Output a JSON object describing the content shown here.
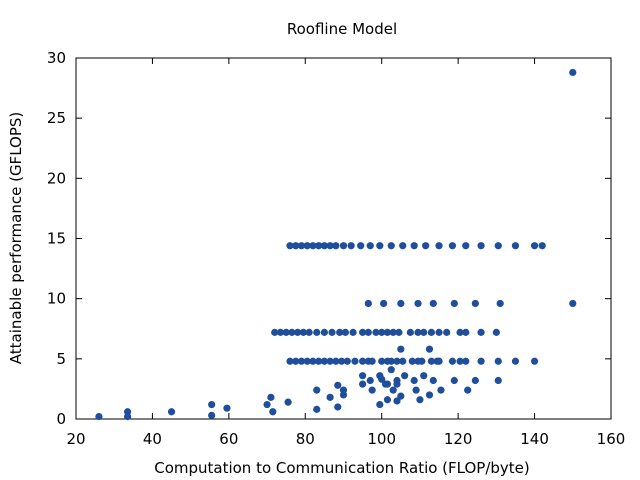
{
  "chart_data": {
    "type": "scatter",
    "title": "Roofline Model",
    "xlabel": "Computation to Communication Ratio (FLOP/byte)",
    "ylabel": "Attainable performance (GFLOPS)",
    "xlim": [
      20,
      160
    ],
    "ylim": [
      0,
      30
    ],
    "xticks": [
      20,
      40,
      60,
      80,
      100,
      120,
      140,
      160
    ],
    "yticks": [
      0,
      5,
      10,
      15,
      20,
      25,
      30
    ],
    "grid": false,
    "marker_color": "#1f4e9c",
    "points": [
      [
        26,
        0.2
      ],
      [
        33.5,
        0.6
      ],
      [
        33.5,
        0.2
      ],
      [
        45,
        0.6
      ],
      [
        55.5,
        1.2
      ],
      [
        55.5,
        0.3
      ],
      [
        59.5,
        0.9
      ],
      [
        70,
        1.2
      ],
      [
        71,
        1.8
      ],
      [
        71.5,
        0.6
      ],
      [
        75.5,
        1.4
      ],
      [
        76,
        14.4
      ],
      [
        77.5,
        14.4
      ],
      [
        79,
        14.4
      ],
      [
        80.5,
        14.4
      ],
      [
        82,
        14.4
      ],
      [
        83.5,
        14.4
      ],
      [
        85,
        14.4
      ],
      [
        86.5,
        14.4
      ],
      [
        88,
        14.4
      ],
      [
        90,
        14.4
      ],
      [
        92,
        14.4
      ],
      [
        94.5,
        14.4
      ],
      [
        97,
        14.4
      ],
      [
        99.5,
        14.4
      ],
      [
        102.5,
        14.4
      ],
      [
        105.5,
        14.4
      ],
      [
        108.5,
        14.4
      ],
      [
        111.5,
        14.4
      ],
      [
        115,
        14.4
      ],
      [
        118.5,
        14.4
      ],
      [
        122,
        14.4
      ],
      [
        126,
        14.4
      ],
      [
        130.5,
        14.4
      ],
      [
        135,
        14.4
      ],
      [
        140,
        14.4
      ],
      [
        142,
        14.4
      ],
      [
        150,
        28.8
      ],
      [
        96.5,
        9.6
      ],
      [
        100.5,
        9.6
      ],
      [
        105,
        9.6
      ],
      [
        109.5,
        9.6
      ],
      [
        113.5,
        9.6
      ],
      [
        119,
        9.6
      ],
      [
        124.5,
        9.6
      ],
      [
        131,
        9.6
      ],
      [
        150,
        9.6
      ],
      [
        72,
        7.2
      ],
      [
        73.5,
        7.2
      ],
      [
        75,
        7.2
      ],
      [
        76.5,
        7.2
      ],
      [
        78,
        7.2
      ],
      [
        79.5,
        7.2
      ],
      [
        81,
        7.2
      ],
      [
        83,
        7.2
      ],
      [
        85,
        7.2
      ],
      [
        87,
        7.2
      ],
      [
        89,
        7.2
      ],
      [
        90.5,
        7.2
      ],
      [
        92.5,
        7.2
      ],
      [
        95,
        7.2
      ],
      [
        96.5,
        7.2
      ],
      [
        98.5,
        7.2
      ],
      [
        100,
        7.2
      ],
      [
        101.5,
        7.2
      ],
      [
        103,
        7.2
      ],
      [
        104.5,
        7.2
      ],
      [
        107.5,
        7.2
      ],
      [
        109.5,
        7.2
      ],
      [
        111,
        7.2
      ],
      [
        113,
        7.2
      ],
      [
        115,
        7.2
      ],
      [
        117,
        7.2
      ],
      [
        120.5,
        7.2
      ],
      [
        122,
        7.2
      ],
      [
        126,
        7.2
      ],
      [
        130,
        7.2
      ],
      [
        76,
        4.8
      ],
      [
        77.5,
        4.8
      ],
      [
        79,
        4.8
      ],
      [
        80.5,
        4.8
      ],
      [
        82,
        4.8
      ],
      [
        83.5,
        4.8
      ],
      [
        85,
        4.8
      ],
      [
        86.5,
        4.8
      ],
      [
        88,
        4.8
      ],
      [
        89.5,
        4.8
      ],
      [
        91,
        4.8
      ],
      [
        93,
        4.8
      ],
      [
        95,
        4.8
      ],
      [
        96.5,
        4.8
      ],
      [
        97.5,
        4.8
      ],
      [
        100,
        4.8
      ],
      [
        101.5,
        4.8
      ],
      [
        102.5,
        4.8
      ],
      [
        104,
        4.8
      ],
      [
        105.5,
        4.8
      ],
      [
        108,
        4.8
      ],
      [
        109.5,
        4.8
      ],
      [
        110.5,
        4.8
      ],
      [
        113,
        4.8
      ],
      [
        114.5,
        4.8
      ],
      [
        115,
        4.8
      ],
      [
        118.5,
        4.8
      ],
      [
        120.5,
        4.8
      ],
      [
        122,
        4.8
      ],
      [
        126,
        4.8
      ],
      [
        130.5,
        4.8
      ],
      [
        135,
        4.8
      ],
      [
        140,
        4.8
      ],
      [
        105,
        5.8
      ],
      [
        112.5,
        5.8
      ],
      [
        95,
        3.6
      ],
      [
        99.5,
        3.6
      ],
      [
        102.5,
        4.1
      ],
      [
        106,
        3.6
      ],
      [
        111,
        3.6
      ],
      [
        100,
        3.3
      ],
      [
        104,
        3.2
      ],
      [
        108.5,
        3.2
      ],
      [
        113.5,
        3.2
      ],
      [
        119,
        3.2
      ],
      [
        124.5,
        3.2
      ],
      [
        130.5,
        3.2
      ],
      [
        95,
        2.9
      ],
      [
        97,
        3.2
      ],
      [
        101,
        2.9
      ],
      [
        88.5,
        2.8
      ],
      [
        101.5,
        2.9
      ],
      [
        104,
        2.9
      ],
      [
        83,
        2.4
      ],
      [
        90,
        2.4
      ],
      [
        97.5,
        2.4
      ],
      [
        103,
        2.4
      ],
      [
        109,
        2.4
      ],
      [
        115.5,
        2.4
      ],
      [
        122.5,
        2.4
      ],
      [
        90,
        2.0
      ],
      [
        105,
        1.9
      ],
      [
        112.5,
        2.0
      ],
      [
        86.5,
        1.8
      ],
      [
        101.5,
        1.6
      ],
      [
        104,
        1.5
      ],
      [
        110,
        1.6
      ],
      [
        99.5,
        1.2
      ],
      [
        83,
        0.8
      ],
      [
        88.5,
        1.0
      ]
    ]
  }
}
